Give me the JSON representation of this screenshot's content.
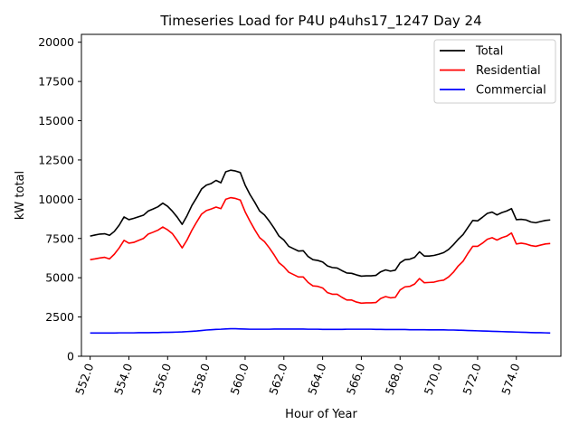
{
  "chart_data": {
    "type": "line",
    "title": "Timeseries Load for P4U p4uhs17_1247  Day 24",
    "xlabel": "Hour of Year",
    "ylabel": "kW total",
    "xlim": [
      551.55,
      576.3
    ],
    "ylim": [
      0,
      20500
    ],
    "xticks": [
      552,
      554,
      556,
      558,
      560,
      562,
      564,
      566,
      568,
      570,
      572,
      574
    ],
    "xtick_labels": [
      "552.0",
      "554.0",
      "556.0",
      "558.0",
      "560.0",
      "562.0",
      "564.0",
      "566.0",
      "568.0",
      "570.0",
      "572.0",
      "574.0"
    ],
    "yticks": [
      0,
      2500,
      5000,
      7500,
      10000,
      12500,
      15000,
      17500,
      20000
    ],
    "ytick_labels": [
      "0",
      "2500",
      "5000",
      "7500",
      "10000",
      "12500",
      "15000",
      "17500",
      "20000"
    ],
    "legend_position": "top-right",
    "x_start": 552.0,
    "x_step": 0.25,
    "series": [
      {
        "name": "Total",
        "color": "#000000",
        "values": [
          7650,
          7720,
          7780,
          7800,
          7700,
          7950,
          8350,
          8870,
          8700,
          8780,
          8880,
          8980,
          9250,
          9380,
          9520,
          9750,
          9550,
          9230,
          8850,
          8400,
          8950,
          9600,
          10100,
          10650,
          10900,
          11000,
          11200,
          11050,
          11750,
          11850,
          11800,
          11700,
          10900,
          10300,
          9800,
          9250,
          9000,
          8600,
          8150,
          7650,
          7400,
          7000,
          6850,
          6700,
          6720,
          6350,
          6150,
          6100,
          6000,
          5750,
          5650,
          5620,
          5450,
          5300,
          5280,
          5180,
          5100,
          5120,
          5120,
          5150,
          5380,
          5500,
          5420,
          5480,
          5950,
          6150,
          6180,
          6300,
          6650,
          6380,
          6380,
          6420,
          6500,
          6600,
          6800,
          7100,
          7450,
          7750,
          8200,
          8650,
          8620,
          8850,
          9100,
          9180,
          9000,
          9150,
          9250,
          9400,
          8700,
          8720,
          8680,
          8550,
          8500,
          8580,
          8650,
          8680
        ]
      },
      {
        "name": "Residential",
        "color": "#ff0000",
        "values": [
          6150,
          6200,
          6260,
          6300,
          6200,
          6500,
          6900,
          7380,
          7200,
          7250,
          7380,
          7500,
          7780,
          7900,
          8030,
          8230,
          8050,
          7800,
          7370,
          6900,
          7400,
          8020,
          8550,
          9050,
          9280,
          9380,
          9500,
          9400,
          10000,
          10100,
          10050,
          9950,
          9200,
          8600,
          8050,
          7550,
          7300,
          6900,
          6450,
          5950,
          5700,
          5350,
          5200,
          5050,
          5050,
          4700,
          4480,
          4450,
          4350,
          4050,
          3950,
          3950,
          3750,
          3580,
          3580,
          3450,
          3380,
          3400,
          3400,
          3420,
          3680,
          3800,
          3720,
          3750,
          4220,
          4420,
          4450,
          4600,
          4950,
          4680,
          4700,
          4720,
          4800,
          4850,
          5050,
          5350,
          5750,
          6050,
          6550,
          7000,
          7000,
          7200,
          7450,
          7550,
          7400,
          7550,
          7650,
          7850,
          7150,
          7200,
          7150,
          7050,
          7000,
          7080,
          7150,
          7180
        ]
      },
      {
        "name": "Commercial",
        "color": "#0000ff",
        "values": [
          1480,
          1480,
          1480,
          1480,
          1480,
          1480,
          1490,
          1490,
          1490,
          1490,
          1500,
          1500,
          1500,
          1510,
          1510,
          1520,
          1520,
          1530,
          1540,
          1550,
          1570,
          1590,
          1610,
          1640,
          1670,
          1690,
          1710,
          1720,
          1740,
          1750,
          1750,
          1740,
          1730,
          1720,
          1720,
          1720,
          1720,
          1720,
          1730,
          1730,
          1730,
          1730,
          1730,
          1730,
          1730,
          1720,
          1720,
          1720,
          1710,
          1710,
          1710,
          1710,
          1710,
          1720,
          1720,
          1720,
          1720,
          1720,
          1720,
          1710,
          1710,
          1700,
          1700,
          1700,
          1700,
          1700,
          1690,
          1690,
          1690,
          1690,
          1680,
          1680,
          1680,
          1680,
          1670,
          1670,
          1660,
          1650,
          1640,
          1630,
          1620,
          1610,
          1600,
          1590,
          1580,
          1570,
          1560,
          1550,
          1540,
          1530,
          1520,
          1510,
          1500,
          1500,
          1490,
          1480
        ]
      }
    ]
  }
}
